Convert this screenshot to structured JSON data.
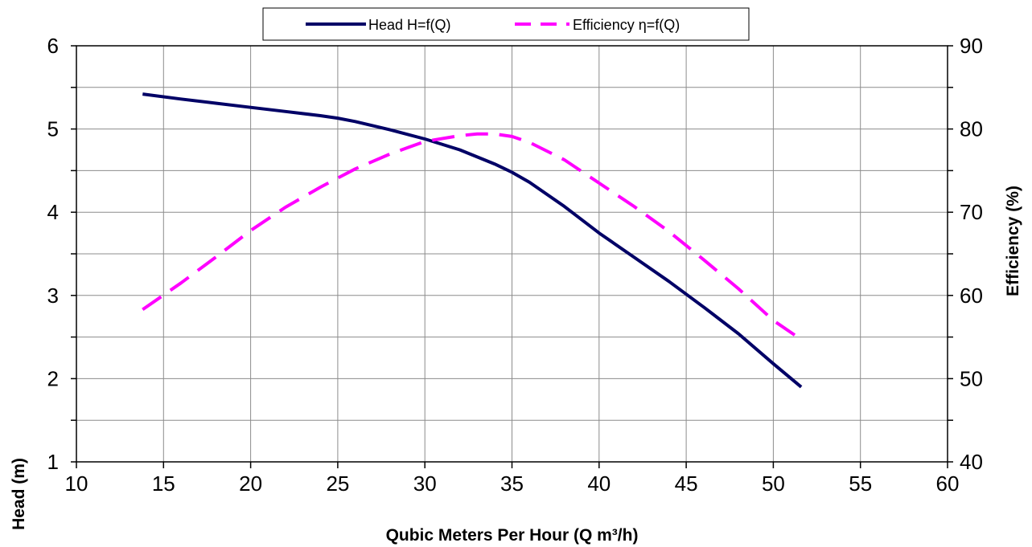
{
  "chart_data": {
    "type": "line",
    "title": "",
    "xlabel": "Qubic Meters Per Hour (Q m³/h)",
    "ylabel": "Head (m)",
    "y2label": "Efficiency (%)",
    "xlim": [
      10,
      60
    ],
    "ylim": [
      1,
      6
    ],
    "y2lim": [
      40,
      90
    ],
    "x_ticks": [
      "10",
      "15",
      "20",
      "25",
      "30",
      "35",
      "40",
      "45",
      "50",
      "55",
      "60"
    ],
    "y_ticks": [
      "1",
      "2",
      "3",
      "4",
      "5",
      "6"
    ],
    "y2_ticks": [
      "40",
      "50",
      "60",
      "70",
      "80",
      "90"
    ],
    "grid": true,
    "legend_position": "top-center",
    "series": [
      {
        "name": "Head H=f(Q)",
        "axis": "left",
        "color": "#000066",
        "style": "solid",
        "x": [
          13.8,
          16,
          18,
          20,
          22,
          24,
          25,
          26,
          28,
          30,
          32,
          34,
          35,
          36,
          38,
          40,
          42,
          44,
          46,
          48,
          50,
          51.6
        ],
        "y": [
          5.42,
          5.36,
          5.31,
          5.26,
          5.21,
          5.16,
          5.13,
          5.09,
          4.99,
          4.88,
          4.75,
          4.58,
          4.48,
          4.36,
          4.07,
          3.75,
          3.46,
          3.17,
          2.86,
          2.54,
          2.18,
          1.9
        ]
      },
      {
        "name": "Efficiency η=f(Q)",
        "axis": "right",
        "color": "#ff00ff",
        "style": "dashed",
        "x": [
          13.8,
          16,
          18,
          20,
          22,
          24,
          26,
          28,
          30,
          32,
          33,
          34,
          35,
          36,
          38,
          40,
          42,
          44,
          46,
          48,
          50,
          51.6
        ],
        "y": [
          58.3,
          61.5,
          64.6,
          67.8,
          70.6,
          73.0,
          75.2,
          77.0,
          78.5,
          79.2,
          79.4,
          79.4,
          79.1,
          78.4,
          76.3,
          73.5,
          70.7,
          67.7,
          64.3,
          60.8,
          57.0,
          54.7
        ]
      }
    ]
  }
}
